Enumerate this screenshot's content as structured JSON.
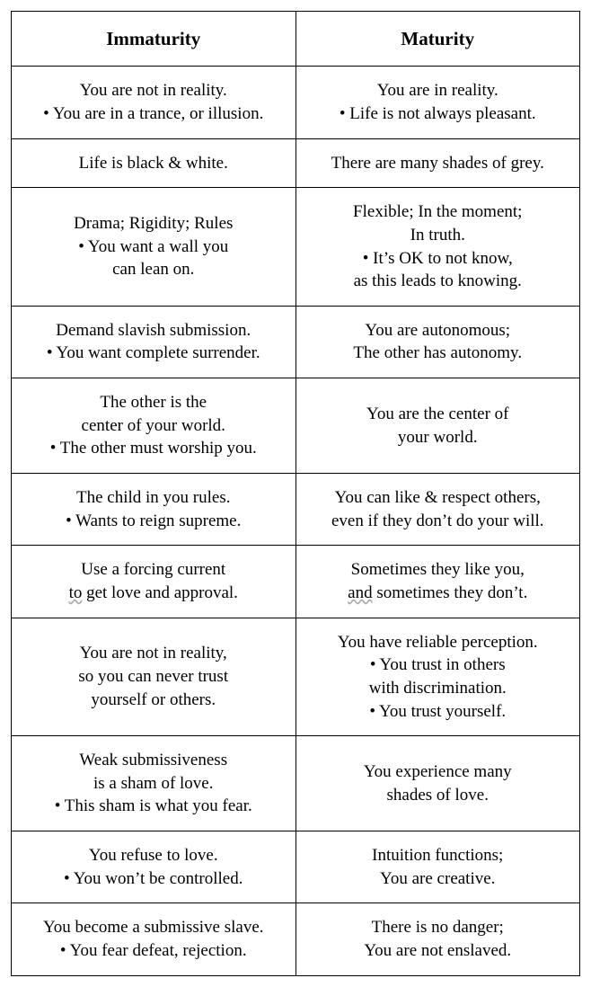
{
  "table": {
    "background_color": "#ffffff",
    "border_color": "#000000",
    "border_width": 1.5,
    "text_color": "#000000",
    "header_fontsize": 21,
    "cell_fontsize": 19,
    "font_family": "Georgia, Times New Roman, serif",
    "columns": [
      {
        "header": "Immaturity",
        "width_percent": 50
      },
      {
        "header": "Maturity",
        "width_percent": 50
      }
    ],
    "rows": [
      {
        "left": [
          {
            "type": "line",
            "text": "You are not in reality."
          },
          {
            "type": "bullet",
            "text": "• You are in a trance, or illusion."
          }
        ],
        "right": [
          {
            "type": "line",
            "text": "You are in reality."
          },
          {
            "type": "bullet",
            "text": "• Life is not always pleasant."
          }
        ]
      },
      {
        "left": [
          {
            "type": "line",
            "text": "Life is black & white."
          }
        ],
        "right": [
          {
            "type": "line",
            "text": "There are many shades of grey."
          }
        ]
      },
      {
        "left": [
          {
            "type": "line",
            "text": "Drama; Rigidity; Rules"
          },
          {
            "type": "bullet",
            "text": "• You want a wall you"
          },
          {
            "type": "line",
            "text": "can lean on."
          }
        ],
        "right": [
          {
            "type": "line",
            "text": "Flexible; In the moment;"
          },
          {
            "type": "line",
            "text": "In truth."
          },
          {
            "type": "bullet",
            "text": "• It’s OK to not know,"
          },
          {
            "type": "line",
            "text": "as this leads to knowing."
          }
        ]
      },
      {
        "left": [
          {
            "type": "line",
            "text": "Demand slavish submission."
          },
          {
            "type": "bullet",
            "text": "• You want complete surrender."
          }
        ],
        "right": [
          {
            "type": "line",
            "text": "You are autonomous;"
          },
          {
            "type": "line",
            "text": "The other has autonomy."
          }
        ]
      },
      {
        "left": [
          {
            "type": "line",
            "text": "The other is the"
          },
          {
            "type": "line",
            "text": "center of your world."
          },
          {
            "type": "bullet",
            "text": "• The other must worship you."
          }
        ],
        "right": [
          {
            "type": "line",
            "text": "You are the center of"
          },
          {
            "type": "line",
            "text": "your world."
          }
        ]
      },
      {
        "left": [
          {
            "type": "line",
            "text": "The child in you rules."
          },
          {
            "type": "bullet",
            "text": "• Wants to reign supreme."
          }
        ],
        "right": [
          {
            "type": "line",
            "text": "You can like & respect others,"
          },
          {
            "type": "line",
            "text": "even if they don’t do your will."
          }
        ]
      },
      {
        "left": [
          {
            "type": "line",
            "text": "Use a forcing current"
          },
          {
            "type": "line_u",
            "prefix_u": "to",
            "rest": " get love and approval."
          }
        ],
        "right": [
          {
            "type": "line",
            "text": "Sometimes they like you,"
          },
          {
            "type": "line_u",
            "prefix_u": "and",
            "rest": " sometimes they don’t."
          }
        ]
      },
      {
        "left": [
          {
            "type": "line",
            "text": "You are not in reality,"
          },
          {
            "type": "line",
            "text": "so you can never trust"
          },
          {
            "type": "line",
            "text": "yourself or others."
          }
        ],
        "right": [
          {
            "type": "line",
            "text": "You have reliable perception."
          },
          {
            "type": "bullet",
            "text": "• You trust in others"
          },
          {
            "type": "line",
            "text": "with discrimination."
          },
          {
            "type": "bullet",
            "text": "• You trust yourself."
          }
        ]
      },
      {
        "left": [
          {
            "type": "line",
            "text": "Weak submissiveness"
          },
          {
            "type": "line",
            "text": "is a sham of love."
          },
          {
            "type": "bullet",
            "text": "• This sham is what you fear."
          }
        ],
        "right": [
          {
            "type": "line",
            "text": "You experience many"
          },
          {
            "type": "line",
            "text": "shades of love."
          }
        ]
      },
      {
        "left": [
          {
            "type": "line",
            "text": "You refuse to love."
          },
          {
            "type": "bullet",
            "text": "• You won’t be controlled."
          }
        ],
        "right": [
          {
            "type": "line",
            "text": "Intuition functions;"
          },
          {
            "type": "line",
            "text": "You are creative."
          }
        ]
      },
      {
        "left": [
          {
            "type": "line",
            "text": "You become a submissive slave."
          },
          {
            "type": "bullet",
            "text": "• You fear defeat, rejection."
          }
        ],
        "right": [
          {
            "type": "line",
            "text": "There is no danger;"
          },
          {
            "type": "line",
            "text": "You are not enslaved."
          }
        ]
      }
    ]
  }
}
